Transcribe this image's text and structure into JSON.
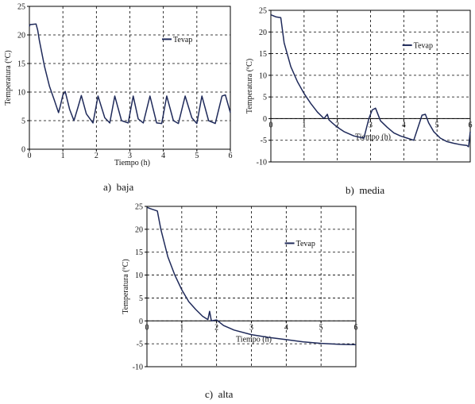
{
  "chart_data": [
    {
      "type": "line",
      "caption": "a)  baja",
      "xlabel": "Tiempo (h)",
      "ylabel": "Temperatura (ºC)",
      "xlim": [
        0,
        6
      ],
      "ylim": [
        0,
        25
      ],
      "xticks": [
        "0",
        "1",
        "2",
        "3",
        "4",
        "5",
        "6"
      ],
      "yticks": [
        "0",
        "5",
        "10",
        "15",
        "20",
        "25"
      ],
      "xtick_values": [
        0,
        1,
        2,
        3,
        4,
        5,
        6
      ],
      "ytick_values": [
        0,
        5,
        10,
        15,
        20,
        25
      ],
      "grid": true,
      "legend_position": "top-right",
      "color": "#1f2a5a",
      "series": [
        {
          "name": "Tevap",
          "x": [
            0,
            0.02,
            0.2,
            0.25,
            0.3,
            0.45,
            0.6,
            0.75,
            0.87,
            0.92,
            1.0,
            1.07,
            1.2,
            1.33,
            1.45,
            1.55,
            1.7,
            1.9,
            2.05,
            2.25,
            2.4,
            2.55,
            2.75,
            2.95,
            3.1,
            3.25,
            3.4,
            3.6,
            3.8,
            3.95,
            4.1,
            4.3,
            4.45,
            4.65,
            4.85,
            5.0,
            5.15,
            5.35,
            5.55,
            5.75,
            5.85,
            6.0
          ],
          "y": [
            21.5,
            21.8,
            21.9,
            20.8,
            19.0,
            14.5,
            11.0,
            8.5,
            6.4,
            7.5,
            9.5,
            10.1,
            7.0,
            5.0,
            7.3,
            9.4,
            6.2,
            4.6,
            9.3,
            5.5,
            4.6,
            9.3,
            5.0,
            4.6,
            9.3,
            5.3,
            4.6,
            9.3,
            4.6,
            4.5,
            9.3,
            5.0,
            4.5,
            9.3,
            5.5,
            4.5,
            9.3,
            5.0,
            4.5,
            9.3,
            9.5,
            6.4
          ]
        }
      ]
    },
    {
      "type": "line",
      "caption": "b)  media",
      "xlabel": "Tiempo (h)",
      "ylabel": "Temperatura (ºC)",
      "xlim": [
        0,
        6
      ],
      "ylim": [
        -10,
        25
      ],
      "xticks": [
        "0",
        "1",
        "2",
        "3",
        "4",
        "5",
        "6"
      ],
      "yticks": [
        "-10",
        "-5",
        "0",
        "5",
        "10",
        "15",
        "20",
        "25"
      ],
      "xtick_values": [
        0,
        1,
        2,
        3,
        4,
        5,
        6
      ],
      "ytick_values": [
        -10,
        -5,
        0,
        5,
        10,
        15,
        20,
        25
      ],
      "grid": true,
      "legend_position": "top-right",
      "color": "#1f2a5a",
      "series": [
        {
          "name": "Tevap",
          "x": [
            0,
            0.05,
            0.15,
            0.3,
            0.4,
            0.6,
            0.8,
            1.0,
            1.2,
            1.4,
            1.6,
            1.7,
            1.75,
            1.85,
            2.0,
            2.2,
            2.5,
            2.8,
            2.95,
            3.05,
            3.15,
            3.3,
            3.5,
            3.7,
            3.9,
            4.1,
            4.3,
            4.45,
            4.55,
            4.65,
            4.75,
            4.9,
            5.1,
            5.3,
            5.5,
            5.7,
            5.9,
            5.95,
            6.0
          ],
          "y": [
            24.0,
            23.8,
            23.5,
            23.3,
            17.5,
            12.0,
            8.5,
            5.8,
            3.5,
            1.5,
            0.0,
            1.0,
            -0.3,
            -1.0,
            -2.0,
            -3.0,
            -4.0,
            -4.5,
            0.0,
            2.0,
            2.4,
            -0.5,
            -2.0,
            -3.3,
            -4.0,
            -4.5,
            -5.0,
            -1.5,
            0.8,
            1.0,
            -1.0,
            -3.0,
            -4.5,
            -5.3,
            -5.7,
            -6.0,
            -6.2,
            -6.5,
            -3.0
          ]
        }
      ]
    },
    {
      "type": "line",
      "caption": "c)  alta",
      "xlabel": "Tiempo (h)",
      "ylabel": "Temperatura (ºC)",
      "xlim": [
        0,
        6
      ],
      "ylim": [
        -10,
        25
      ],
      "xticks": [
        "0",
        "1",
        "2",
        "3",
        "4",
        "5",
        "6"
      ],
      "yticks": [
        "-10",
        "-5",
        "0",
        "5",
        "10",
        "15",
        "20",
        "25"
      ],
      "xtick_values": [
        0,
        1,
        2,
        3,
        4,
        5,
        6
      ],
      "ytick_values": [
        -10,
        -5,
        0,
        5,
        10,
        15,
        20,
        25
      ],
      "grid": true,
      "legend_position": "top-right",
      "color": "#1f2a5a",
      "series": [
        {
          "name": "Tevap",
          "x": [
            0,
            0.1,
            0.3,
            0.4,
            0.6,
            0.8,
            1.0,
            1.2,
            1.4,
            1.6,
            1.75,
            1.8,
            1.85,
            2.0,
            2.2,
            2.5,
            3.0,
            3.5,
            4.0,
            4.5,
            5.0,
            5.5,
            6.0
          ],
          "y": [
            24.8,
            24.5,
            24.0,
            20.0,
            14.0,
            10.0,
            6.8,
            4.2,
            2.5,
            1.0,
            0.3,
            2.1,
            0.0,
            0.2,
            -1.0,
            -2.0,
            -3.0,
            -3.6,
            -4.1,
            -4.6,
            -4.9,
            -5.1,
            -5.2
          ]
        }
      ]
    }
  ]
}
